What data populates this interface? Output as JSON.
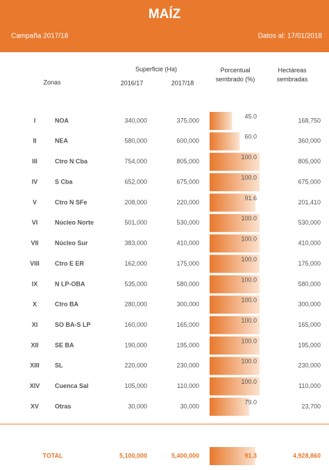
{
  "header": {
    "title": "MAÍZ",
    "campaign": "Campaña 2017/18",
    "date": "Datos al: 17/01/2018"
  },
  "table": {
    "group_header": "Superficie (Ha)",
    "columns": {
      "zones": "Zonas",
      "y2016": "2016/17",
      "y2017": "2017/18",
      "percent": "Porcentual sembrado (%)",
      "sown": "Hectáreas sembradas"
    },
    "rows": [
      {
        "id": "I",
        "zone": "NOA",
        "y2016": "340,000",
        "y2017": "375,000",
        "percent": {
          "value": 45,
          "label": "45.0"
        },
        "sown": "168,750"
      },
      {
        "id": "II",
        "zone": "NEA",
        "y2016": "580,000",
        "y2017": "600,000",
        "percent": {
          "value": 60,
          "label": "60.0"
        },
        "sown": "360,000"
      },
      {
        "id": "III",
        "zone": "Ctro N Cba",
        "y2016": "754,000",
        "y2017": "805,000",
        "percent": {
          "value": 100,
          "label": "100.0"
        },
        "sown": "805,000"
      },
      {
        "id": "IV",
        "zone": "S Cba",
        "y2016": "652,000",
        "y2017": "675,000",
        "percent": {
          "value": 100,
          "label": "100.0"
        },
        "sown": "675,000"
      },
      {
        "id": "V",
        "zone": "Ctro N SFe",
        "y2016": "208,000",
        "y2017": "220,000",
        "percent": {
          "value": 91.6,
          "label": "91.6"
        },
        "sown": "201,410"
      },
      {
        "id": "VI",
        "zone": "Núcleo Norte",
        "y2016": "501,000",
        "y2017": "530,000",
        "percent": {
          "value": 100,
          "label": "100.0"
        },
        "sown": "530,000"
      },
      {
        "id": "VII",
        "zone": "Núcleo Sur",
        "y2016": "383,000",
        "y2017": "410,000",
        "percent": {
          "value": 100,
          "label": "100.0"
        },
        "sown": "410,000"
      },
      {
        "id": "VIII",
        "zone": "Ctro E ER",
        "y2016": "162,000",
        "y2017": "175,000",
        "percent": {
          "value": 100,
          "label": "100.0"
        },
        "sown": "175,000"
      },
      {
        "id": "IX",
        "zone": "N LP-OBA",
        "y2016": "535,000",
        "y2017": "580,000",
        "percent": {
          "value": 100,
          "label": "100.0"
        },
        "sown": "580,000"
      },
      {
        "id": "X",
        "zone": "Ctro BA",
        "y2016": "280,000",
        "y2017": "300,000",
        "percent": {
          "value": 100,
          "label": "100.0"
        },
        "sown": "300,000"
      },
      {
        "id": "XI",
        "zone": "SO BA-S LP",
        "y2016": "160,000",
        "y2017": "165,000",
        "percent": {
          "value": 100,
          "label": "100.0"
        },
        "sown": "165,000"
      },
      {
        "id": "XII",
        "zone": "SE BA",
        "y2016": "190,000",
        "y2017": "195,000",
        "percent": {
          "value": 100,
          "label": "100.0"
        },
        "sown": "195,000"
      },
      {
        "id": "XIII",
        "zone": "SL",
        "y2016": "220,000",
        "y2017": "230,000",
        "percent": {
          "value": 100,
          "label": "100.0"
        },
        "sown": "230,000"
      },
      {
        "id": "XIV",
        "zone": "Cuenca Sal",
        "y2016": "105,000",
        "y2017": "110,000",
        "percent": {
          "value": 100,
          "label": "100.0"
        },
        "sown": "110,000"
      },
      {
        "id": "XV",
        "zone": "Otras",
        "y2016": "30,000",
        "y2017": "30,000",
        "percent": {
          "value": 79,
          "label": "79.0"
        },
        "sown": "23,700"
      }
    ],
    "total": {
      "label": "TOTAL",
      "y2016": "5,100,000",
      "y2017": "5,400,000",
      "percent": {
        "value": 91.3,
        "label": "91.3"
      },
      "sown": "4,928,860"
    }
  }
}
